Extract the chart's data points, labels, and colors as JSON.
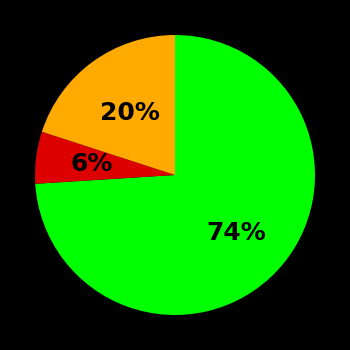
{
  "slices": [
    74,
    6,
    20
  ],
  "colors": [
    "#00ff00",
    "#dd0000",
    "#ffaa00"
  ],
  "labels": [
    "74%",
    "6%",
    "20%"
  ],
  "label_positions_r": [
    0.6,
    0.6,
    0.55
  ],
  "background_color": "#000000",
  "text_color": "#000000",
  "label_fontsize": 18,
  "label_fontweight": "bold",
  "startangle": 90,
  "figsize": [
    3.5,
    3.5
  ],
  "dpi": 100
}
